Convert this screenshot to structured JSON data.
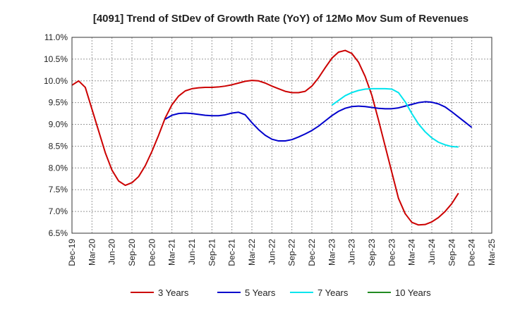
{
  "chart_data": {
    "type": "line",
    "title": "[4091]  Trend of StDev of Growth Rate (YoY) of 12Mo Mov Sum of Revenues",
    "xlabel": "",
    "ylabel": "",
    "ylim": [
      6.5,
      11.0
    ],
    "yticks": [
      "6.5%",
      "7.0%",
      "7.5%",
      "8.0%",
      "8.5%",
      "9.0%",
      "9.5%",
      "10.0%",
      "10.5%",
      "11.0%"
    ],
    "ytick_values": [
      6.5,
      7.0,
      7.5,
      8.0,
      8.5,
      9.0,
      9.5,
      10.0,
      10.5,
      11.0
    ],
    "x_start": "Dec-19",
    "xtick_labels": [
      "Dec-19",
      "Mar-20",
      "Jun-20",
      "Sep-20",
      "Dec-20",
      "Mar-21",
      "Jun-21",
      "Sep-21",
      "Dec-21",
      "Mar-22",
      "Jun-22",
      "Sep-22",
      "Dec-22",
      "Mar-23",
      "Jun-23",
      "Sep-23",
      "Dec-23",
      "Mar-24",
      "Jun-24",
      "Sep-24",
      "Dec-24",
      "Mar-25"
    ],
    "xtick_index": [
      0,
      3,
      6,
      9,
      12,
      15,
      18,
      21,
      24,
      27,
      30,
      33,
      36,
      39,
      42,
      45,
      48,
      51,
      54,
      57,
      60,
      63
    ],
    "x_max_index": 63,
    "grid": true,
    "legend_position": "bottom",
    "series": [
      {
        "name": "3 Years",
        "color": "#cc0000",
        "start_index": 0,
        "values": [
          9.9,
          10.0,
          9.85,
          9.35,
          8.85,
          8.35,
          7.95,
          7.7,
          7.6,
          7.66,
          7.8,
          8.05,
          8.38,
          8.75,
          9.15,
          9.45,
          9.65,
          9.77,
          9.82,
          9.84,
          9.85,
          9.85,
          9.86,
          9.88,
          9.91,
          9.95,
          9.99,
          10.01,
          10.0,
          9.95,
          9.88,
          9.82,
          9.76,
          9.73,
          9.73,
          9.76,
          9.88,
          10.07,
          10.3,
          10.52,
          10.66,
          10.7,
          10.63,
          10.43,
          10.1,
          9.67,
          9.1,
          8.5,
          7.9,
          7.3,
          6.95,
          6.75,
          6.69,
          6.7,
          6.76,
          6.86,
          7.0,
          7.18,
          7.42
        ]
      },
      {
        "name": "5 Years",
        "color": "#0000cc",
        "start_index": 14,
        "values": [
          9.12,
          9.21,
          9.25,
          9.26,
          9.25,
          9.23,
          9.21,
          9.2,
          9.2,
          9.22,
          9.26,
          9.28,
          9.22,
          9.04,
          8.88,
          8.75,
          8.66,
          8.62,
          8.62,
          8.65,
          8.71,
          8.78,
          8.86,
          8.96,
          9.08,
          9.2,
          9.3,
          9.37,
          9.41,
          9.42,
          9.41,
          9.39,
          9.37,
          9.36,
          9.36,
          9.38,
          9.42,
          9.46,
          9.5,
          9.52,
          9.51,
          9.47,
          9.4,
          9.29,
          9.17,
          9.05,
          8.93
        ]
      },
      {
        "name": "7 Years",
        "color": "#00e5ee",
        "start_index": 39,
        "values": [
          9.44,
          9.55,
          9.66,
          9.73,
          9.78,
          9.81,
          9.82,
          9.82,
          9.82,
          9.81,
          9.73,
          9.52,
          9.25,
          9.01,
          8.83,
          8.69,
          8.59,
          8.53,
          8.49,
          8.48
        ]
      },
      {
        "name": "10 Years",
        "color": "#228b22",
        "start_index": 0,
        "values": []
      }
    ]
  }
}
